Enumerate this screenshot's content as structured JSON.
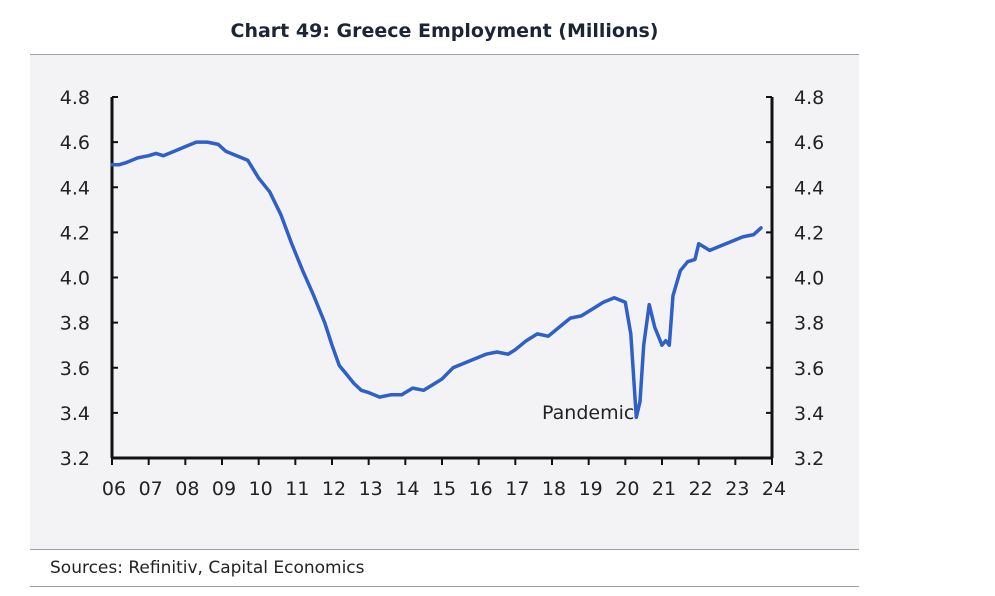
{
  "chart_data": {
    "type": "line",
    "title": "Chart 49: Greece Employment (Millions)",
    "xlabel": "",
    "ylabel": "",
    "xlim": [
      2006,
      2024
    ],
    "ylim": [
      3.2,
      4.8
    ],
    "yticks": [
      3.2,
      3.4,
      3.6,
      3.8,
      4.0,
      4.2,
      4.4,
      4.6,
      4.8
    ],
    "ytick_labels": [
      "3.2",
      "3.4",
      "3.6",
      "3.8",
      "4.0",
      "4.2",
      "4.4",
      "4.6",
      "4.8"
    ],
    "xtick_labels": [
      "06",
      "07",
      "08",
      "09",
      "10",
      "11",
      "12",
      "13",
      "14",
      "15",
      "16",
      "17",
      "18",
      "19",
      "20",
      "21",
      "22",
      "23",
      "24"
    ],
    "grid": false,
    "legend": "none",
    "colors": {
      "line": "#2f5fc8",
      "axis": "#111111"
    },
    "annotations": [
      {
        "text": "Pandemic",
        "x": 2020.3,
        "y": 3.4
      }
    ],
    "series": [
      {
        "name": "Greece Employment",
        "x": [
          2006.0,
          2006.2,
          2006.4,
          2006.7,
          2007.0,
          2007.2,
          2007.4,
          2007.7,
          2008.0,
          2008.3,
          2008.6,
          2008.9,
          2009.1,
          2009.4,
          2009.7,
          2010.0,
          2010.3,
          2010.6,
          2010.9,
          2011.2,
          2011.5,
          2011.8,
          2012.0,
          2012.2,
          2012.4,
          2012.6,
          2012.8,
          2013.0,
          2013.3,
          2013.6,
          2013.9,
          2014.2,
          2014.5,
          2014.8,
          2015.0,
          2015.3,
          2015.6,
          2015.9,
          2016.2,
          2016.5,
          2016.8,
          2017.0,
          2017.3,
          2017.6,
          2017.9,
          2018.2,
          2018.5,
          2018.8,
          2019.1,
          2019.4,
          2019.7,
          2020.0,
          2020.15,
          2020.3,
          2020.4,
          2020.5,
          2020.65,
          2020.8,
          2021.0,
          2021.1,
          2021.2,
          2021.3,
          2021.5,
          2021.7,
          2021.9,
          2022.0,
          2022.3,
          2022.6,
          2022.9,
          2023.2,
          2023.5,
          2023.7
        ],
        "values": [
          4.5,
          4.5,
          4.51,
          4.53,
          4.54,
          4.55,
          4.54,
          4.56,
          4.58,
          4.6,
          4.6,
          4.59,
          4.56,
          4.54,
          4.52,
          4.44,
          4.38,
          4.28,
          4.15,
          4.03,
          3.92,
          3.8,
          3.7,
          3.61,
          3.57,
          3.53,
          3.5,
          3.49,
          3.47,
          3.48,
          3.48,
          3.51,
          3.5,
          3.53,
          3.55,
          3.6,
          3.62,
          3.64,
          3.66,
          3.67,
          3.66,
          3.68,
          3.72,
          3.75,
          3.74,
          3.78,
          3.82,
          3.83,
          3.86,
          3.89,
          3.91,
          3.89,
          3.75,
          3.38,
          3.45,
          3.7,
          3.88,
          3.78,
          3.7,
          3.72,
          3.7,
          3.92,
          4.03,
          4.07,
          4.08,
          4.15,
          4.12,
          4.14,
          4.16,
          4.18,
          4.19,
          4.22
        ]
      }
    ]
  }
}
